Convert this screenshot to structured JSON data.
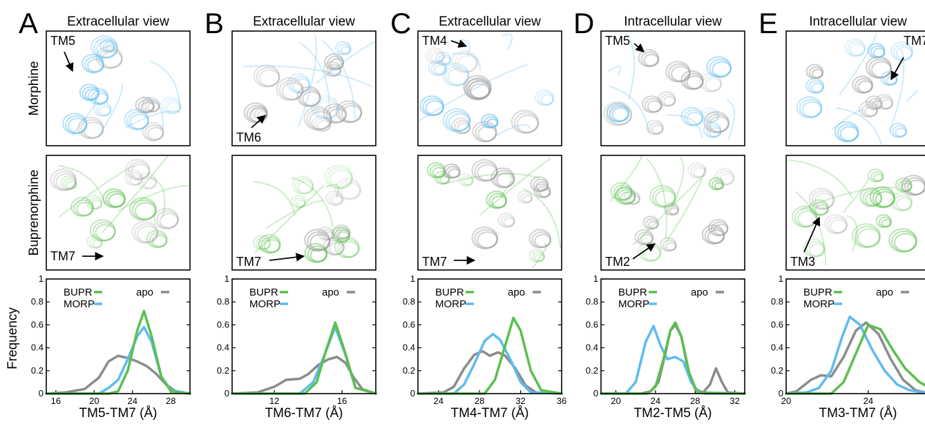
{
  "columns": [
    {
      "letter": "A",
      "view": "Extracellular view",
      "morphine_tm": "TM5",
      "bupr_tm": "TM7"
    },
    {
      "letter": "B",
      "view": "Extracellular view",
      "morphine_tm": "TM6",
      "bupr_tm": "TM7"
    },
    {
      "letter": "C",
      "view": "Extracellular view",
      "morphine_tm": "TM4",
      "bupr_tm": "TM7"
    },
    {
      "letter": "D",
      "view": "Intracellular view",
      "morphine_tm": "TM5",
      "bupr_tm": "TM2"
    },
    {
      "letter": "E",
      "view": "Intracellular view",
      "morphine_tm": "TM7",
      "bupr_tm": "TM3"
    }
  ],
  "row_labels": {
    "morphine": "Morphine",
    "buprenorphine": "Buprenorphine"
  },
  "colors": {
    "bupr": "#5cbf4f",
    "morp": "#5fbcee",
    "apo": "#8c8c8c"
  },
  "chart_data": [
    {
      "type": "line",
      "xlabel": "TM5-TM7 (Å)",
      "ylabel": "Frequency",
      "xlim": [
        15,
        30
      ],
      "ylim": [
        0,
        1
      ],
      "xticks": [
        16,
        20,
        24,
        28
      ],
      "yticks": [
        0,
        0.2,
        0.4,
        0.6,
        0.8,
        1
      ],
      "legend": [
        "BUPR",
        "MORP",
        "apo"
      ],
      "series": [
        {
          "name": "BUPR",
          "x": [
            15,
            21.5,
            22.5,
            23.5,
            24.5,
            25.2,
            26,
            27,
            28,
            30
          ],
          "y": [
            0,
            0,
            0.02,
            0.2,
            0.55,
            0.72,
            0.5,
            0.15,
            0.02,
            0
          ]
        },
        {
          "name": "MORP",
          "x": [
            15,
            20.5,
            21.5,
            22.5,
            23.5,
            24.5,
            25.2,
            26,
            27,
            28,
            30
          ],
          "y": [
            0,
            0,
            0.05,
            0.12,
            0.3,
            0.5,
            0.58,
            0.45,
            0.15,
            0.03,
            0
          ]
        },
        {
          "name": "apo",
          "x": [
            15,
            17,
            19,
            20.5,
            21.5,
            22.5,
            23.5,
            24.5,
            25.5,
            26.5,
            27.5,
            28.5,
            30
          ],
          "y": [
            0,
            0.01,
            0.04,
            0.14,
            0.28,
            0.33,
            0.31,
            0.28,
            0.24,
            0.17,
            0.08,
            0.02,
            0
          ]
        }
      ]
    },
    {
      "type": "line",
      "xlabel": "TM6-TM7 (Å)",
      "ylabel": "",
      "xlim": [
        9.5,
        18
      ],
      "ylim": [
        0,
        1
      ],
      "xticks": [
        12,
        16
      ],
      "yticks": [
        0,
        0.2,
        0.4,
        0.6,
        0.8,
        1
      ],
      "legend": [
        "BUPR",
        "MORP",
        "apo"
      ],
      "series": [
        {
          "name": "BUPR",
          "x": [
            9.5,
            13.8,
            14.5,
            15,
            15.6,
            16.2,
            16.8,
            18
          ],
          "y": [
            0,
            0,
            0.1,
            0.35,
            0.62,
            0.35,
            0.05,
            0
          ]
        },
        {
          "name": "MORP",
          "x": [
            9.5,
            13.5,
            14.3,
            15,
            15.6,
            16.2,
            16.8,
            18
          ],
          "y": [
            0,
            0,
            0.1,
            0.35,
            0.58,
            0.34,
            0.05,
            0
          ]
        },
        {
          "name": "apo",
          "x": [
            9.5,
            11,
            12,
            12.7,
            13.5,
            14,
            14.6,
            15.2,
            15.7,
            16.2,
            16.7,
            17.2,
            18
          ],
          "y": [
            0,
            0.01,
            0.06,
            0.12,
            0.13,
            0.17,
            0.25,
            0.3,
            0.32,
            0.27,
            0.14,
            0.04,
            0
          ]
        }
      ]
    },
    {
      "type": "line",
      "xlabel": "TM4-TM7 (Å)",
      "ylabel": "",
      "xlim": [
        22,
        36
      ],
      "ylim": [
        0,
        1
      ],
      "xticks": [
        24,
        28,
        32,
        36
      ],
      "yticks": [
        0,
        0.2,
        0.4,
        0.6,
        0.8,
        1
      ],
      "legend": [
        "BUPR",
        "MORP",
        "apo"
      ],
      "series": [
        {
          "name": "BUPR",
          "x": [
            22,
            28.5,
            29.5,
            30.5,
            31.3,
            32,
            33,
            34,
            36
          ],
          "y": [
            0,
            0,
            0.12,
            0.42,
            0.66,
            0.55,
            0.2,
            0.03,
            0
          ]
        },
        {
          "name": "MORP",
          "x": [
            22,
            25.5,
            26.5,
            27.5,
            28.5,
            29.3,
            30,
            31,
            32,
            33,
            36
          ],
          "y": [
            0,
            0,
            0.08,
            0.26,
            0.46,
            0.52,
            0.47,
            0.3,
            0.1,
            0.01,
            0
          ]
        },
        {
          "name": "apo",
          "x": [
            22,
            24.5,
            25.5,
            26.5,
            27.5,
            28.3,
            29,
            29.8,
            30.5,
            31.5,
            32.5,
            33.5,
            36
          ],
          "y": [
            0,
            0.01,
            0.06,
            0.22,
            0.34,
            0.37,
            0.33,
            0.36,
            0.33,
            0.22,
            0.07,
            0.01,
            0
          ]
        }
      ]
    },
    {
      "type": "line",
      "xlabel": "TM2-TM5 (Å)",
      "ylabel": "",
      "xlim": [
        18.5,
        33
      ],
      "ylim": [
        0,
        1
      ],
      "xticks": [
        20,
        24,
        28,
        32
      ],
      "yticks": [
        0,
        0.2,
        0.4,
        0.6,
        0.8,
        1
      ],
      "legend": [
        "BUPR",
        "MORP",
        "apo"
      ],
      "series": [
        {
          "name": "BUPR",
          "x": [
            18.5,
            23.2,
            24,
            24.8,
            25.5,
            26,
            26.6,
            27.4,
            28.2,
            33
          ],
          "y": [
            0,
            0,
            0.06,
            0.3,
            0.55,
            0.62,
            0.5,
            0.18,
            0.01,
            0
          ]
        },
        {
          "name": "MORP",
          "x": [
            18.5,
            21,
            22,
            23,
            23.8,
            24.5,
            25.2,
            26,
            26.8,
            27.6,
            28.3,
            29,
            33
          ],
          "y": [
            0,
            0,
            0.1,
            0.45,
            0.59,
            0.42,
            0.3,
            0.32,
            0.28,
            0.1,
            0.02,
            0,
            0
          ]
        },
        {
          "name": "apo",
          "x": [
            18.5,
            22.5,
            23.5,
            24.3,
            25,
            25.5,
            26,
            26.6,
            27.3,
            28,
            28.8,
            29.5,
            30.1,
            30.7,
            31.3,
            33
          ],
          "y": [
            0,
            0,
            0.02,
            0.1,
            0.35,
            0.55,
            0.6,
            0.5,
            0.2,
            0.04,
            0.01,
            0.08,
            0.22,
            0.1,
            0.01,
            0
          ]
        }
      ]
    },
    {
      "type": "line",
      "xlabel": "TM3-TM7 (Å)",
      "ylabel": "",
      "xlim": [
        20,
        27
      ],
      "ylim": [
        0,
        1
      ],
      "xticks": [
        20,
        24
      ],
      "yticks": [
        0,
        0.2,
        0.4,
        0.6,
        0.8,
        1
      ],
      "legend": [
        "BUPR",
        "MORP",
        "apo"
      ],
      "series": [
        {
          "name": "BUPR",
          "x": [
            20,
            22.2,
            22.8,
            23.4,
            24,
            24.6,
            25.2,
            25.8,
            26.5,
            27
          ],
          "y": [
            0,
            0,
            0.1,
            0.35,
            0.6,
            0.56,
            0.38,
            0.22,
            0.1,
            0.05
          ]
        },
        {
          "name": "MORP",
          "x": [
            20,
            21,
            21.6,
            22.2,
            22.7,
            23.1,
            23.6,
            24.2,
            24.8,
            25.4,
            26,
            26.6,
            27
          ],
          "y": [
            0,
            0.01,
            0.05,
            0.2,
            0.48,
            0.67,
            0.6,
            0.38,
            0.2,
            0.08,
            0.03,
            0.01,
            0
          ]
        },
        {
          "name": "apo",
          "x": [
            20,
            20.5,
            21.2,
            21.7,
            22.2,
            22.8,
            23.4,
            23.9,
            24.5,
            25.1,
            25.7,
            26.3,
            27
          ],
          "y": [
            0,
            0.02,
            0.12,
            0.16,
            0.15,
            0.32,
            0.55,
            0.62,
            0.52,
            0.3,
            0.12,
            0.03,
            0
          ]
        }
      ]
    }
  ]
}
